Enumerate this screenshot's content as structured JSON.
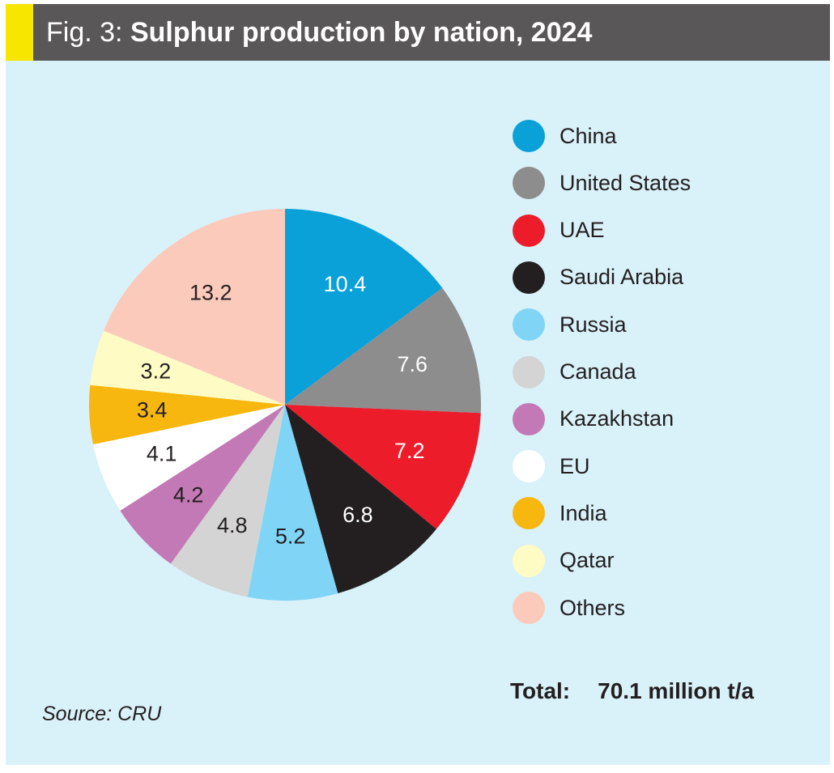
{
  "title": {
    "prefix": "Fig. 3:",
    "main": "Sulphur production by nation, 2024"
  },
  "chart_data": {
    "type": "pie",
    "title": "Sulphur production by nation, 2024",
    "slices": [
      {
        "label": "China",
        "value": 10.4,
        "color": "#0aa1d9",
        "text_color": "#ffffff"
      },
      {
        "label": "United States",
        "value": 7.6,
        "color": "#8e8d8e",
        "text_color": "#ffffff"
      },
      {
        "label": "UAE",
        "value": 7.2,
        "color": "#ed1c2a",
        "text_color": "#ffffff"
      },
      {
        "label": "Saudi Arabia",
        "value": 6.8,
        "color": "#231f20",
        "text_color": "#ffffff"
      },
      {
        "label": "Russia",
        "value": 5.2,
        "color": "#80d5f6",
        "text_color": "#231f20"
      },
      {
        "label": "Canada",
        "value": 4.8,
        "color": "#d4d4d4",
        "text_color": "#231f20"
      },
      {
        "label": "Kazakhstan",
        "value": 4.2,
        "color": "#c379b5",
        "text_color": "#231f20"
      },
      {
        "label": "EU",
        "value": 4.1,
        "color": "#ffffff",
        "text_color": "#231f20"
      },
      {
        "label": "India",
        "value": 3.4,
        "color": "#f8b70f",
        "text_color": "#231f20"
      },
      {
        "label": "Qatar",
        "value": 3.2,
        "color": "#fefcc4",
        "text_color": "#231f20"
      },
      {
        "label": "Others",
        "value": 13.2,
        "color": "#fccabb",
        "text_color": "#231f20"
      }
    ],
    "legend_placement": "right"
  },
  "total": {
    "label": "Total:",
    "value": "70.1 million t/a"
  },
  "source": "Source: CRU"
}
